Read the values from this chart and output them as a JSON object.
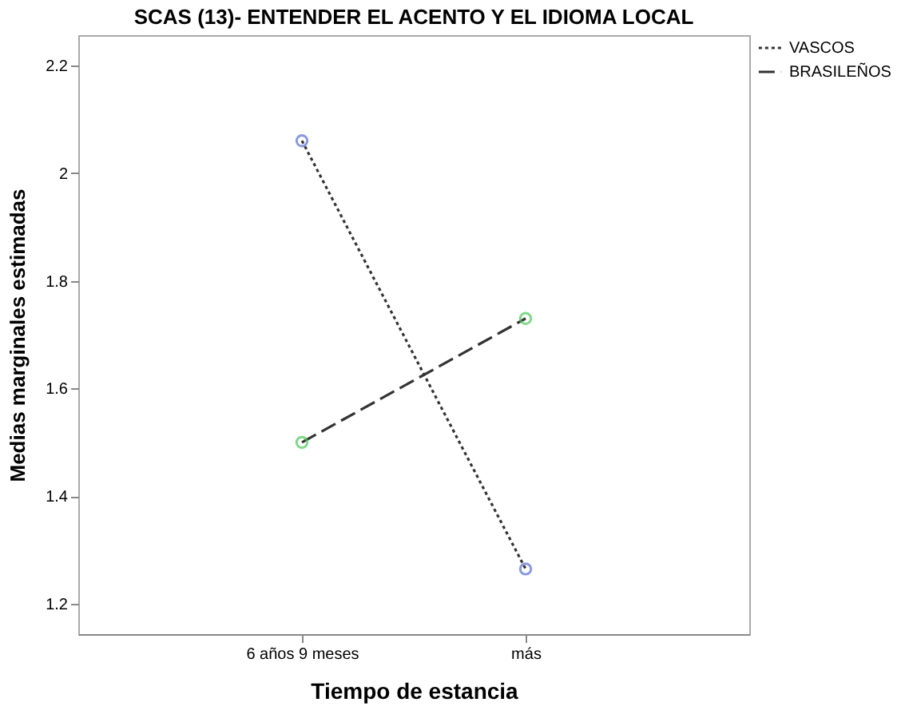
{
  "chart_data": {
    "type": "line",
    "title": "SCAS (13)- ENTENDER EL ACENTO Y EL IDIOMA LOCAL",
    "xlabel": "Tiempo de estancia",
    "ylabel": "Medias marginales estimadas",
    "categories": [
      "6 años 9 meses",
      "más"
    ],
    "series": [
      {
        "name": "VASCOS",
        "color": "#333333",
        "colors": [
          "#5a6fd0",
          "#5a6fd0"
        ],
        "line_style": "dotted",
        "values": [
          2.06,
          1.265
        ]
      },
      {
        "name": "BRASILEÑOS",
        "color": "#333333",
        "colors": [
          "#4cc85a",
          "#4cc85a"
        ],
        "line_style": "dashed",
        "values": [
          1.5,
          1.73
        ]
      }
    ],
    "ylim": [
      1.144,
      2.256
    ],
    "yticks": [
      1.2,
      1.4,
      1.6,
      1.8,
      2,
      2.2
    ],
    "grid": false,
    "legend": "top right",
    "marker": "circle"
  }
}
